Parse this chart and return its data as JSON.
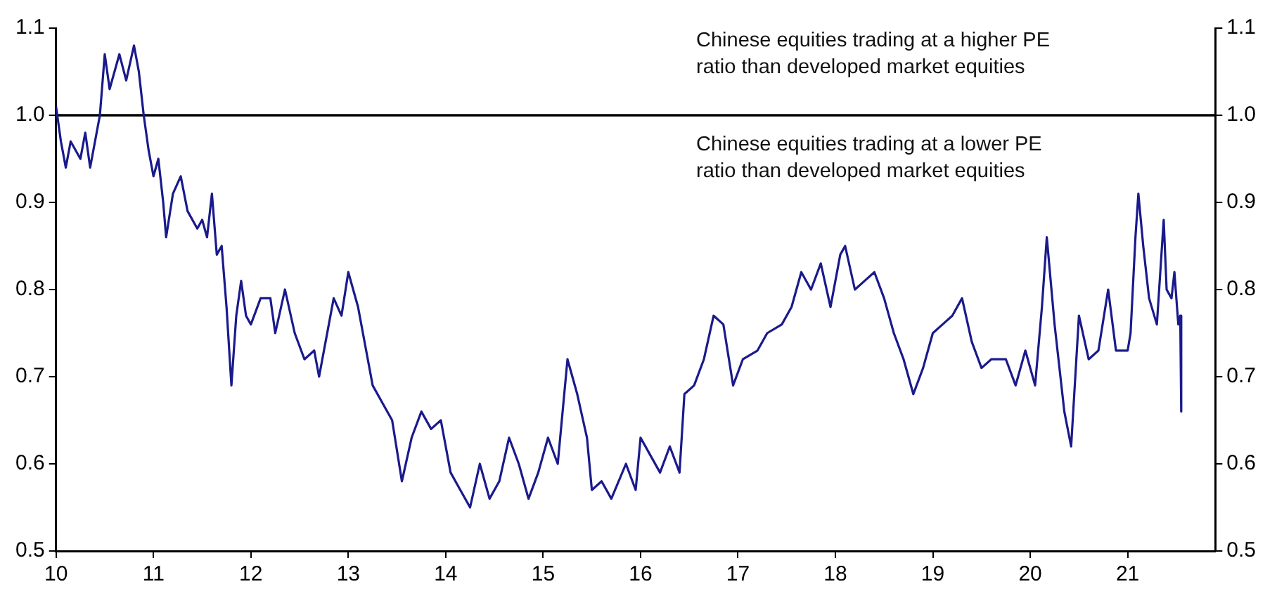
{
  "chart_data": {
    "type": "line",
    "annotations": [
      "Chinese equities trading at a higher PE ratio than developed market equities",
      "Chinese equities trading at a lower PE ratio than developed market equities"
    ],
    "x": [
      10.0,
      10.05,
      10.1,
      10.15,
      10.25,
      10.3,
      10.35,
      10.4,
      10.45,
      10.5,
      10.55,
      10.65,
      10.72,
      10.8,
      10.85,
      10.9,
      10.95,
      11.0,
      11.05,
      11.1,
      11.13,
      11.2,
      11.28,
      11.35,
      11.45,
      11.5,
      11.55,
      11.6,
      11.65,
      11.7,
      11.75,
      11.8,
      11.85,
      11.9,
      11.95,
      12.0,
      12.1,
      12.2,
      12.25,
      12.35,
      12.45,
      12.55,
      12.65,
      12.7,
      12.8,
      12.85,
      12.93,
      13.0,
      13.1,
      13.25,
      13.35,
      13.45,
      13.55,
      13.65,
      13.75,
      13.85,
      13.95,
      14.05,
      14.15,
      14.25,
      14.35,
      14.45,
      14.55,
      14.65,
      14.75,
      14.85,
      14.95,
      15.05,
      15.15,
      15.25,
      15.35,
      15.45,
      15.5,
      15.6,
      15.7,
      15.85,
      15.95,
      16.0,
      16.1,
      16.2,
      16.3,
      16.4,
      16.45,
      16.55,
      16.65,
      16.75,
      16.85,
      16.95,
      17.05,
      17.2,
      17.3,
      17.45,
      17.55,
      17.65,
      17.75,
      17.85,
      17.95,
      18.05,
      18.1,
      18.2,
      18.3,
      18.4,
      18.5,
      18.6,
      18.7,
      18.8,
      18.9,
      19.0,
      19.1,
      19.2,
      19.3,
      19.4,
      19.5,
      19.6,
      19.75,
      19.85,
      19.95,
      20.05,
      20.12,
      20.17,
      20.25,
      20.35,
      20.42,
      20.5,
      20.6,
      20.7,
      20.8,
      20.88,
      20.95,
      21.0,
      21.03,
      21.08,
      21.11,
      21.16,
      21.22,
      21.3,
      21.37,
      21.4,
      21.45,
      21.48,
      21.52,
      21.54,
      21.55
    ],
    "series": [
      {
        "color": "#1a1a8c",
        "values": [
          1.01,
          0.97,
          0.94,
          0.97,
          0.95,
          0.98,
          0.94,
          0.97,
          1.0,
          1.07,
          1.03,
          1.07,
          1.04,
          1.08,
          1.05,
          1.0,
          0.96,
          0.93,
          0.95,
          0.9,
          0.86,
          0.91,
          0.93,
          0.89,
          0.87,
          0.88,
          0.86,
          0.91,
          0.84,
          0.85,
          0.78,
          0.69,
          0.77,
          0.81,
          0.77,
          0.76,
          0.79,
          0.79,
          0.75,
          0.8,
          0.75,
          0.72,
          0.73,
          0.7,
          0.76,
          0.79,
          0.77,
          0.82,
          0.78,
          0.69,
          0.67,
          0.65,
          0.58,
          0.63,
          0.66,
          0.64,
          0.65,
          0.59,
          0.57,
          0.55,
          0.6,
          0.56,
          0.58,
          0.63,
          0.6,
          0.56,
          0.59,
          0.63,
          0.6,
          0.72,
          0.68,
          0.63,
          0.57,
          0.58,
          0.56,
          0.6,
          0.57,
          0.63,
          0.61,
          0.59,
          0.62,
          0.59,
          0.68,
          0.69,
          0.72,
          0.77,
          0.76,
          0.69,
          0.72,
          0.73,
          0.75,
          0.76,
          0.78,
          0.82,
          0.8,
          0.83,
          0.78,
          0.84,
          0.85,
          0.8,
          0.81,
          0.82,
          0.79,
          0.75,
          0.72,
          0.68,
          0.71,
          0.75,
          0.76,
          0.77,
          0.79,
          0.74,
          0.71,
          0.72,
          0.72,
          0.69,
          0.73,
          0.69,
          0.78,
          0.86,
          0.76,
          0.66,
          0.62,
          0.77,
          0.72,
          0.73,
          0.8,
          0.73,
          0.73,
          0.73,
          0.75,
          0.86,
          0.91,
          0.85,
          0.79,
          0.76,
          0.88,
          0.8,
          0.79,
          0.82,
          0.76,
          0.77,
          0.66
        ]
      }
    ],
    "xlim": [
      10,
      21.9
    ],
    "xticks": [
      10,
      11,
      12,
      13,
      14,
      15,
      16,
      17,
      18,
      19,
      20,
      21
    ],
    "ylim": [
      0.5,
      1.1
    ],
    "yticks": [
      {
        "value": 0.5,
        "label": "0.5"
      },
      {
        "value": 0.6,
        "label": "0.6"
      },
      {
        "value": 0.7,
        "label": "0.7"
      },
      {
        "value": 0.8,
        "label": "0.8"
      },
      {
        "value": 0.9,
        "label": "0.9"
      },
      {
        "value": 1.0,
        "label": "1.0"
      },
      {
        "value": 1.1,
        "label": "1.1"
      }
    ],
    "y2lim": [
      0.5,
      1.1
    ],
    "y2ticks": [
      {
        "value": 0.5,
        "label": "0.5"
      },
      {
        "value": 0.6,
        "label": "0.6"
      },
      {
        "value": 0.7,
        "label": "0.7"
      },
      {
        "value": 0.8,
        "label": "0.8"
      },
      {
        "value": 0.9,
        "label": "0.9"
      },
      {
        "value": 1.0,
        "label": "1.0"
      },
      {
        "value": 1.1,
        "label": "1.1"
      }
    ],
    "ref_lines": [
      {
        "axis": "y",
        "value": 1.0,
        "color": "#000000"
      }
    ],
    "grid": false,
    "legend": false,
    "marker": "none",
    "line_style": "solid"
  }
}
